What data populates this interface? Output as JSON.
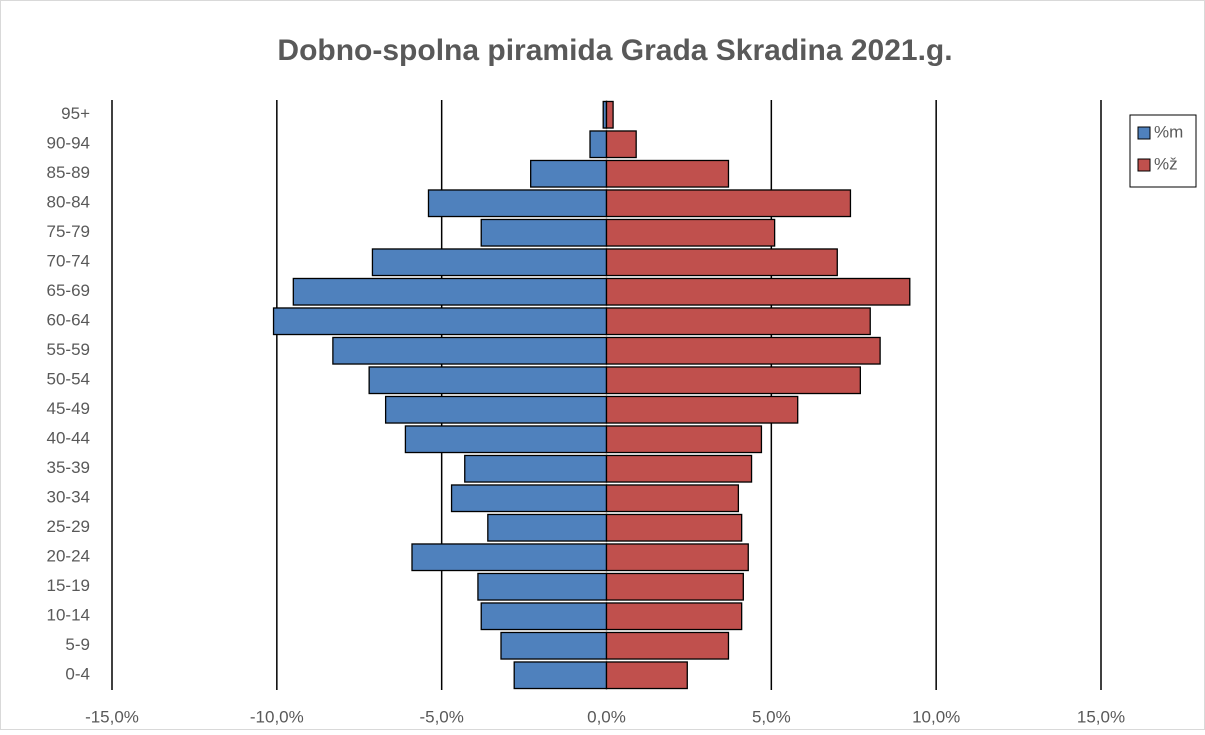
{
  "chart_data": {
    "type": "bar",
    "orientation": "horizontal",
    "stacked": false,
    "title": "Dobno-spolna piramida Grada Skradina 2021.g.",
    "categories": [
      "0-4",
      "5-9",
      "10-14",
      "15-19",
      "20-24",
      "25-29",
      "30-34",
      "35-39",
      "40-44",
      "45-49",
      "50-54",
      "55-59",
      "60-64",
      "65-69",
      "70-74",
      "75-79",
      "80-84",
      "85-89",
      "90-94",
      "95+"
    ],
    "series": [
      {
        "name": "%m",
        "color": "#4f81bd",
        "values": [
          -2.8,
          -3.2,
          -3.8,
          -3.9,
          -5.9,
          -3.6,
          -4.7,
          -4.3,
          -6.1,
          -6.7,
          -7.2,
          -8.3,
          -10.1,
          -9.5,
          -7.1,
          -3.8,
          -5.4,
          -2.3,
          -0.5,
          -0.1
        ]
      },
      {
        "name": "%ž",
        "color": "#c0504d",
        "values": [
          2.45,
          3.7,
          4.1,
          4.15,
          4.3,
          4.1,
          4.0,
          4.4,
          4.7,
          5.8,
          7.7,
          8.3,
          8.0,
          9.2,
          7.0,
          5.1,
          7.4,
          3.7,
          0.9,
          0.2
        ]
      }
    ],
    "xlim": [
      -15,
      15
    ],
    "xticks": [
      {
        "value": -15,
        "label": "-15,0%"
      },
      {
        "value": -10,
        "label": "-10,0%"
      },
      {
        "value": -5,
        "label": "-5,0%"
      },
      {
        "value": 0,
        "label": "0,0%"
      },
      {
        "value": 5,
        "label": "5,0%"
      },
      {
        "value": 10,
        "label": "10,0%"
      },
      {
        "value": 15,
        "label": "15,0%"
      }
    ],
    "grid": true,
    "legend": "right"
  }
}
